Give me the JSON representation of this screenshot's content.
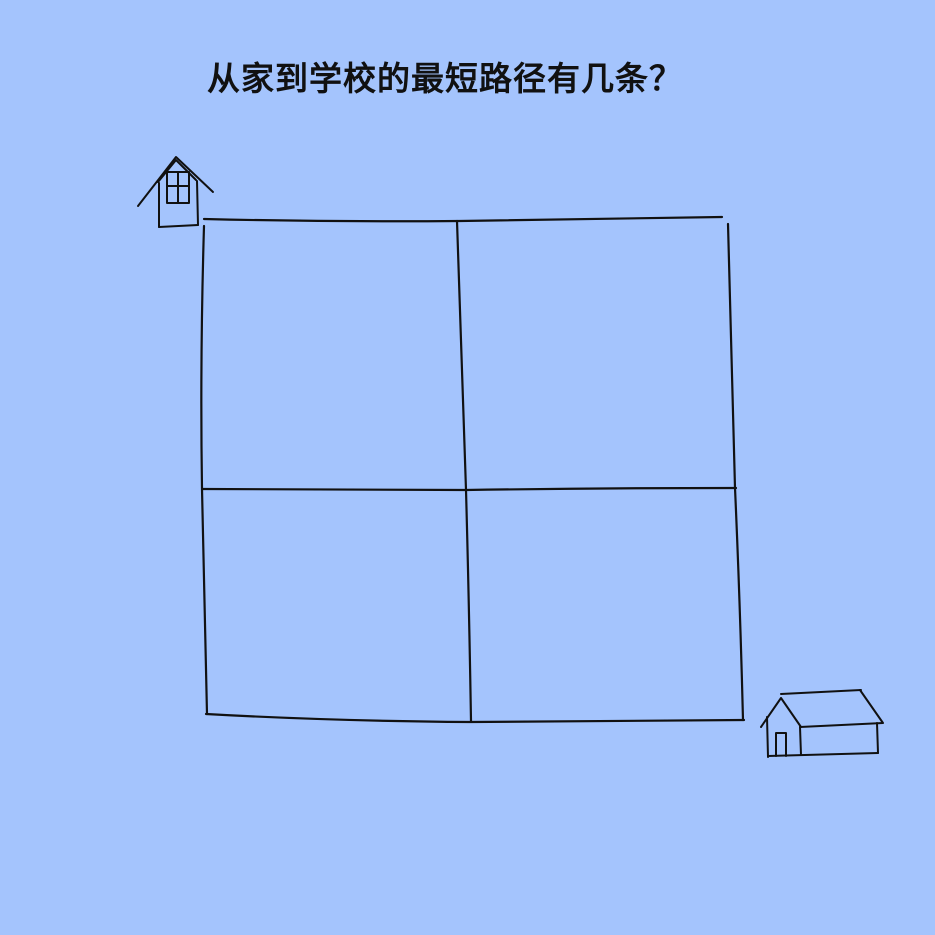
{
  "title": "从家到学校的最短路径有几条？",
  "colors": {
    "background": "#a4c4fd",
    "ink": "#111111"
  },
  "grid": {
    "rows": 2,
    "columns": 2
  },
  "icons": {
    "home": "house-icon",
    "school": "school-icon"
  }
}
